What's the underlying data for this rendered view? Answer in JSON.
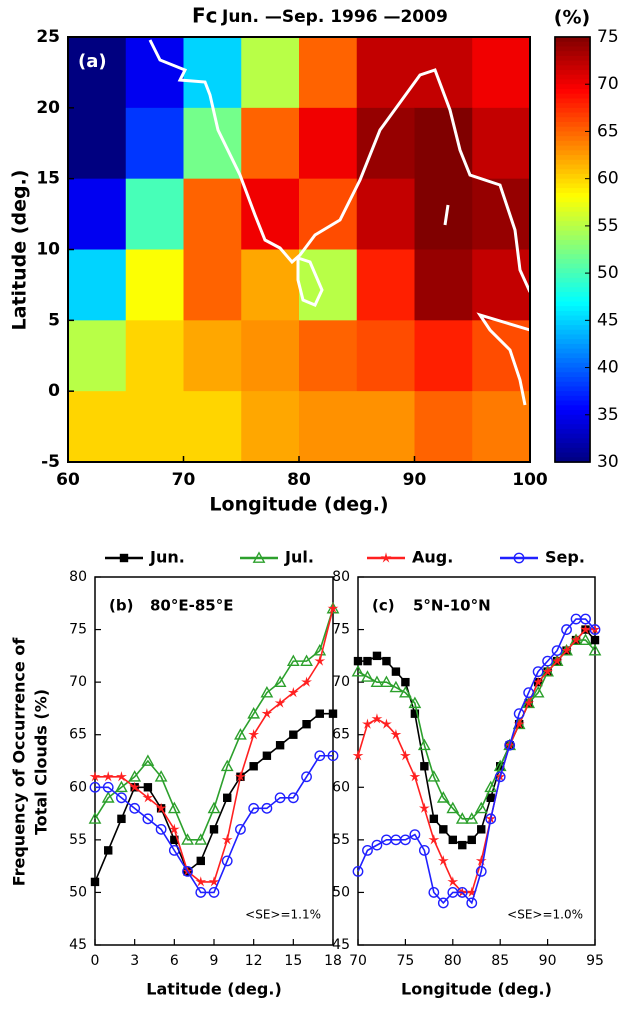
{
  "chart_data": [
    {
      "type": "heatmap",
      "title_symbol": "Fc",
      "title": "Jun. —Sep. 1996 —2009",
      "annotation": "(a)",
      "xlabel": "Longitude (deg.)",
      "ylabel": "Latitude (deg.)",
      "colorbar_label": "(%)",
      "x_edges": [
        60,
        65,
        70,
        75,
        80,
        85,
        90,
        95,
        100
      ],
      "y_edges": [
        25,
        20,
        15,
        10,
        5,
        0,
        -5
      ],
      "values": [
        [
          30,
          35,
          45,
          55,
          65,
          72,
          72,
          70
        ],
        [
          30,
          38,
          52,
          65,
          70,
          74,
          75,
          72
        ],
        [
          35,
          50,
          65,
          70,
          66,
          72,
          75,
          74
        ],
        [
          45,
          58,
          65,
          62,
          55,
          68,
          74,
          72
        ],
        [
          55,
          60,
          62,
          63,
          65,
          66,
          68,
          66
        ],
        [
          60,
          60,
          60,
          62,
          63,
          63,
          65,
          64
        ]
      ],
      "xlim": [
        60,
        100
      ],
      "xticks": [
        60,
        70,
        80,
        90,
        100
      ],
      "ylim": [
        -5,
        25
      ],
      "yticks": [
        -5,
        0,
        5,
        10,
        15,
        20,
        25
      ],
      "zlim": [
        30,
        75
      ],
      "zticks": [
        30,
        35,
        40,
        45,
        50,
        55,
        60,
        65,
        70,
        75
      ],
      "colormap": "jet"
    },
    {
      "type": "line",
      "annotation": "(b)",
      "region": "80°E-85°E",
      "note": "<SE>=1.1%",
      "xlabel": "Latitude (deg.)",
      "ylabel": [
        "Frequency of Occurrence of",
        "Total Clouds (%)"
      ],
      "x": [
        0,
        1,
        2,
        3,
        4,
        5,
        6,
        7,
        8,
        9,
        10,
        11,
        12,
        13,
        14,
        15,
        16,
        17,
        18
      ],
      "series": [
        {
          "name": "Jun.",
          "color": "#000000",
          "marker": "square",
          "values": [
            51,
            54,
            57,
            60,
            60,
            58,
            55,
            52,
            53,
            56,
            59,
            61,
            62,
            63,
            64,
            65,
            66,
            67,
            67
          ]
        },
        {
          "name": "Jul.",
          "color": "#2ca02c",
          "marker": "triangle",
          "values": [
            57,
            59,
            60,
            61,
            62.5,
            61,
            58,
            55,
            55,
            58,
            62,
            65,
            67,
            69,
            70,
            72,
            72,
            73,
            77
          ]
        },
        {
          "name": "Aug.",
          "color": "#ff2020",
          "marker": "star",
          "values": [
            61,
            61,
            61,
            60,
            59,
            58,
            56,
            52,
            51,
            51,
            55,
            61,
            65,
            67,
            68,
            69,
            70,
            72,
            77
          ]
        },
        {
          "name": "Sep.",
          "color": "#2020ff",
          "marker": "circle",
          "values": [
            60,
            60,
            59,
            58,
            57,
            56,
            54,
            52,
            50,
            50,
            53,
            56,
            58,
            58,
            59,
            59,
            61,
            63,
            63
          ]
        }
      ],
      "xlim": [
        0,
        18
      ],
      "xticks": [
        0,
        3,
        6,
        9,
        12,
        15,
        18
      ],
      "ylim": [
        45,
        80
      ],
      "yticks": [
        45,
        50,
        55,
        60,
        65,
        70,
        75,
        80
      ]
    },
    {
      "type": "line",
      "annotation": "(c)",
      "region": "5°N-10°N",
      "note": "<SE>=1.0%",
      "xlabel": "Longitude (deg.)",
      "x": [
        70,
        71,
        72,
        73,
        74,
        75,
        76,
        77,
        78,
        79,
        80,
        81,
        82,
        83,
        84,
        85,
        86,
        87,
        88,
        89,
        90,
        91,
        92,
        93,
        94,
        95
      ],
      "series": [
        {
          "color": "#000000",
          "marker": "square",
          "values": [
            72,
            72,
            72.5,
            72,
            71,
            70,
            67,
            62,
            57,
            56,
            55,
            54.5,
            55,
            56,
            59,
            62,
            64,
            66,
            68,
            70,
            71,
            72,
            73,
            74,
            75,
            74
          ]
        },
        {
          "color": "#2ca02c",
          "marker": "triangle",
          "values": [
            71,
            70.5,
            70,
            70,
            69.5,
            69,
            68,
            64,
            61,
            59,
            58,
            57,
            57,
            58,
            60,
            62,
            64,
            66,
            68,
            69,
            71,
            72,
            73,
            74,
            74,
            73
          ]
        },
        {
          "color": "#ff2020",
          "marker": "star",
          "values": [
            63,
            66,
            66.5,
            66,
            65,
            63,
            61,
            58,
            55,
            53,
            51,
            50,
            50,
            53,
            57,
            61,
            64,
            66,
            68,
            70,
            71,
            72,
            73,
            74,
            75,
            75
          ]
        },
        {
          "color": "#2020ff",
          "marker": "circle",
          "values": [
            52,
            54,
            54.5,
            55,
            55,
            55,
            55.5,
            54,
            50,
            49,
            50,
            50,
            49,
            52,
            57,
            61,
            64,
            67,
            69,
            71,
            72,
            73,
            75,
            76,
            76,
            75
          ]
        }
      ],
      "xlim": [
        70,
        95
      ],
      "xticks": [
        70,
        75,
        80,
        85,
        90,
        95
      ],
      "ylim": [
        45,
        80
      ],
      "yticks": [
        45,
        50,
        55,
        60,
        65,
        70,
        75,
        80
      ]
    }
  ]
}
